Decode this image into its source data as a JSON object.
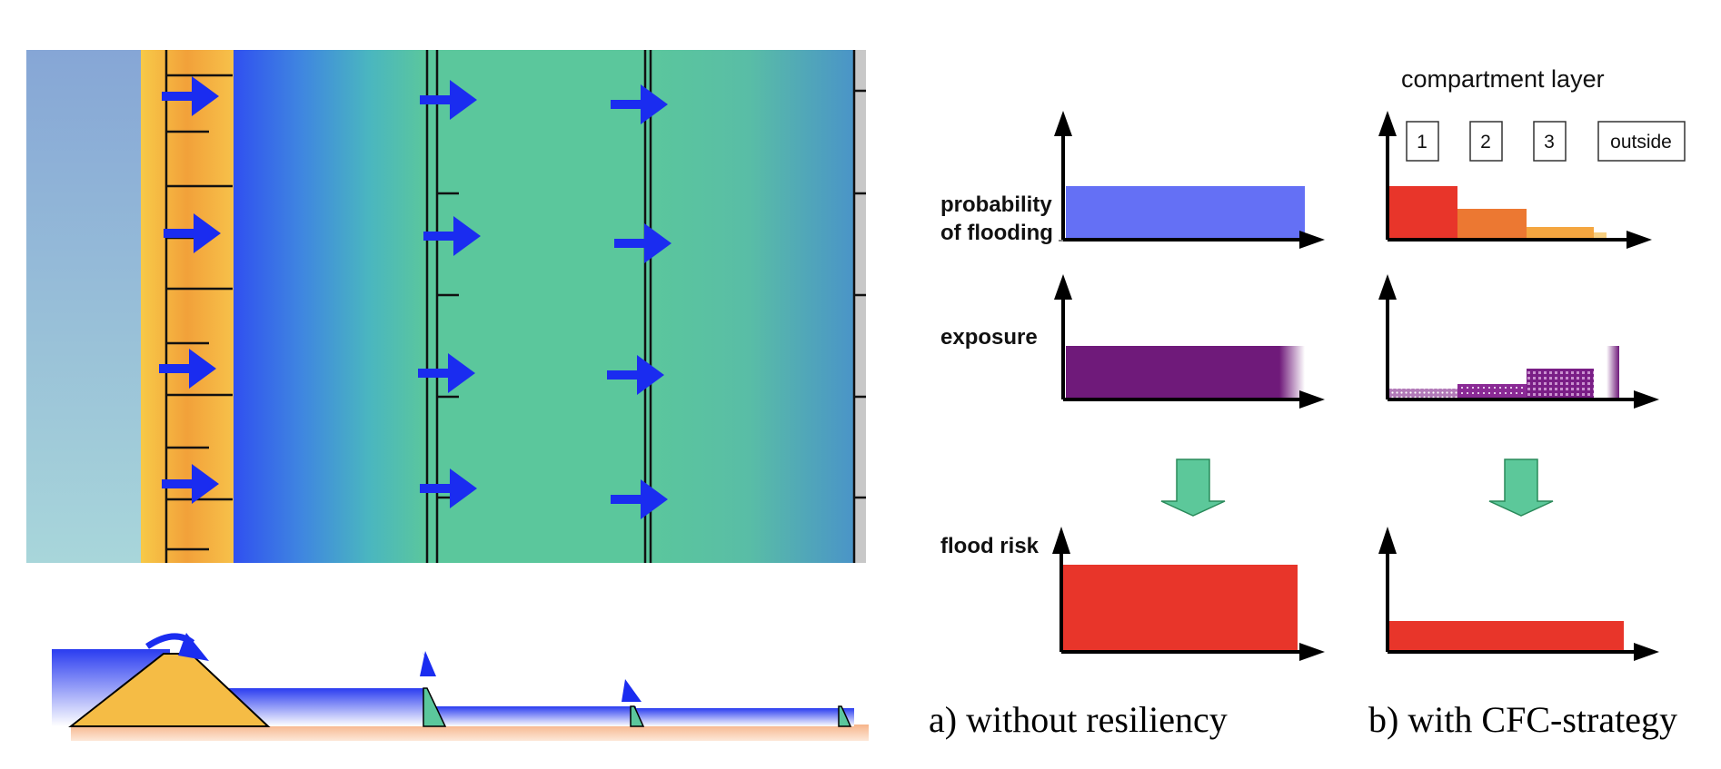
{
  "header": {
    "compartment_layer": "compartment layer"
  },
  "compartments": [
    "1",
    "2",
    "3",
    "outside"
  ],
  "row_labels": {
    "probability_line1": "probability",
    "probability_line2": "of flooding",
    "exposure": "exposure",
    "flood_risk": "flood risk"
  },
  "captions": {
    "without": "a) without  resiliency",
    "with": "b) with CFC-strategy"
  },
  "colors": {
    "probability_blue": "#6470f5",
    "probability_red": "#e8352a",
    "probability_orange": "#ec7832",
    "probability_light_orange": "#f4a640",
    "exposure_purple": "#6f1a7a",
    "flood_risk_red": "#e8352a",
    "down_arrow_green": "#5cc89a",
    "flow_arrow_blue": "#1a2cf0",
    "dike_orange": "#f5bc45",
    "polder_green": "#5bc79c"
  },
  "icons": {
    "flow_arrow": "right-arrow-icon",
    "down_arrow": "down-arrow-icon",
    "overflow_arrow": "curved-arrow-icon",
    "water_level_marker": "triangle-icon"
  }
}
